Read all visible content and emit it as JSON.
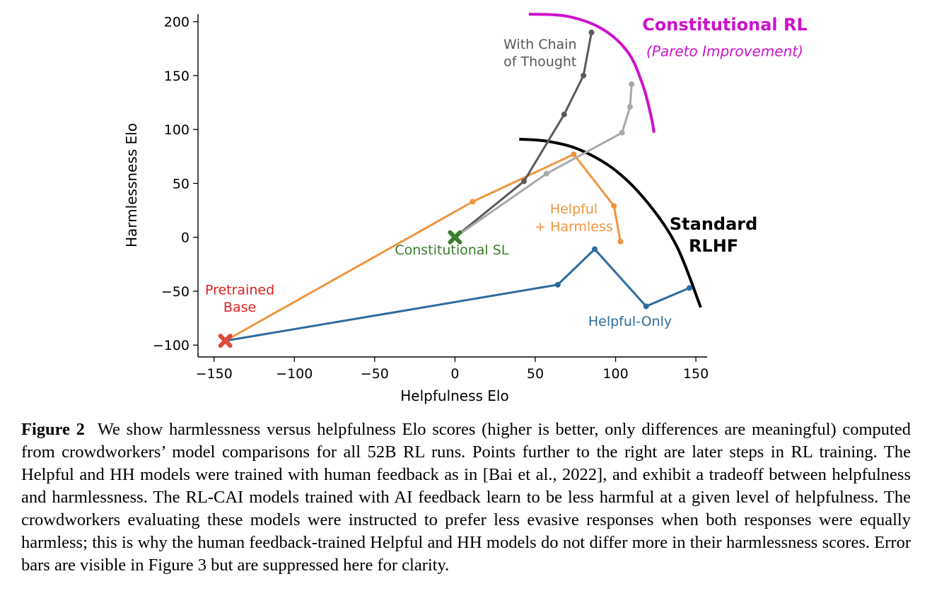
{
  "chart_data": {
    "type": "line",
    "xlabel": "Helpfulness Elo",
    "ylabel": "Harmlessness Elo",
    "xlim": [
      -160,
      157
    ],
    "ylim": [
      -111,
      207
    ],
    "xticks": [
      -150,
      -100,
      -50,
      0,
      50,
      100,
      150
    ],
    "yticks": [
      -100,
      -50,
      0,
      50,
      100,
      150,
      200
    ],
    "xtick_labels": [
      "−150",
      "−100",
      "−50",
      "0",
      "50",
      "100",
      "150"
    ],
    "ytick_labels": [
      "−100",
      "−50",
      "0",
      "50",
      "100",
      "150",
      "200"
    ],
    "grid": false,
    "series": [
      {
        "key": "helpful_only",
        "color": "#2e6b9e",
        "points": [
          [
            -143,
            -96
          ],
          [
            64,
            -44
          ],
          [
            87,
            -11
          ],
          [
            119,
            -64
          ],
          [
            146,
            -47
          ]
        ]
      },
      {
        "key": "helpful_harmless",
        "color": "#f0953f",
        "points": [
          [
            -143,
            -96
          ],
          [
            11,
            33
          ],
          [
            74,
            77
          ],
          [
            99,
            29
          ],
          [
            103,
            -4
          ]
        ]
      },
      {
        "key": "cot",
        "color": "#5a5a5a",
        "points": [
          [
            0,
            0
          ],
          [
            43,
            52
          ],
          [
            68,
            114
          ],
          [
            80,
            150
          ],
          [
            85,
            190
          ]
        ]
      },
      {
        "key": "cai_rl",
        "color": "#a9a9a9",
        "points": [
          [
            0,
            0
          ],
          [
            57,
            59
          ],
          [
            104,
            97
          ],
          [
            109,
            121
          ],
          [
            110,
            142
          ]
        ]
      }
    ],
    "markers": [
      {
        "key": "pretrained",
        "x": -143,
        "y": -96,
        "color": "#e04a3a"
      },
      {
        "key": "constitutional_sl",
        "x": 0,
        "y": 0,
        "color": "#3a7d2c"
      }
    ],
    "frontiers": [
      {
        "key": "standard_rlhf",
        "color": "#000000",
        "points": [
          [
            40,
            91
          ],
          [
            58,
            89
          ],
          [
            78,
            81
          ],
          [
            100,
            62
          ],
          [
            120,
            32
          ],
          [
            138,
            -8
          ],
          [
            153,
            -65
          ]
        ]
      },
      {
        "key": "constitutional_rl",
        "color": "#cc11cc",
        "points": [
          [
            46,
            207
          ],
          [
            70,
            205
          ],
          [
            92,
            193
          ],
          [
            108,
            171
          ],
          [
            117,
            141
          ],
          [
            122,
            113
          ],
          [
            124,
            97
          ]
        ]
      }
    ],
    "annotations": [
      {
        "key": "cot_label",
        "lines": [
          "With Chain",
          "of Thought"
        ],
        "x": 53,
        "y": 175,
        "color": "#555555",
        "size": 19
      },
      {
        "key": "hh_label",
        "lines": [
          "Helpful",
          "+ Harmless"
        ],
        "x": 74,
        "y": 22,
        "color": "#f0953f",
        "size": 19
      },
      {
        "key": "sl_label",
        "lines": [
          "Constitutional SL"
        ],
        "x": -2,
        "y": -16,
        "color": "#3a7d2c",
        "size": 19
      },
      {
        "key": "pt_label",
        "lines": [
          "Pretrained",
          "Base"
        ],
        "x": -134,
        "y": -53,
        "color": "#e02020",
        "size": 19
      },
      {
        "key": "ho_label",
        "lines": [
          "Helpful-Only"
        ],
        "x": 109,
        "y": -82,
        "color": "#2e6b9e",
        "size": 19
      },
      {
        "key": "rlhf_label",
        "lines": [
          "Standard",
          "RLHF"
        ],
        "x": 161,
        "y": 7,
        "color": "#000000",
        "size": 24,
        "bold": true
      },
      {
        "key": "cairl_label",
        "lines": [
          "Constitutional RL"
        ],
        "x": 168,
        "y": 192,
        "color": "#cc11cc",
        "size": 24,
        "bold": true
      },
      {
        "key": "pareto_label",
        "lines": [
          "(Pareto Improvement)"
        ],
        "x": 168,
        "y": 168,
        "color": "#cc11cc",
        "size": 20,
        "italic": true
      }
    ]
  },
  "caption": {
    "label": "Figure 2",
    "text": "We show harmlessness versus helpfulness Elo scores (higher is better, only differences are meaningful) computed from crowdworkers’ model comparisons for all 52B RL runs. Points further to the right are later steps in RL training. The Helpful and HH models were trained with human feedback as in [Bai et al., 2022], and exhibit a tradeoff between helpfulness and harmlessness. The RL-CAI models trained with AI feedback learn to be less harmful at a given level of helpfulness. The crowdworkers evaluating these models were instructed to prefer less evasive responses when both responses were equally harmless; this is why the human feedback-trained Helpful and HH models do not differ more in their harmlessness scores. Error bars are visible in Figure 3 but are suppressed here for clarity."
  }
}
